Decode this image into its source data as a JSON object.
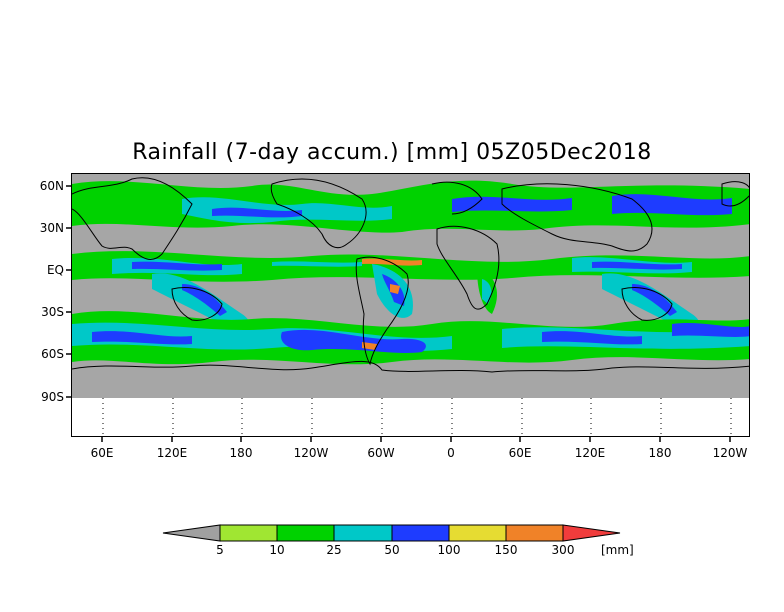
{
  "title": "Rainfall (7-day accum.) [mm] 05Z05Dec2018",
  "y_ticks": [
    "60N",
    "30N",
    "EQ",
    "30S",
    "60S",
    "90S"
  ],
  "x_ticks": [
    "60E",
    "120E",
    "180",
    "120W",
    "60W",
    "0",
    "60E",
    "120E",
    "180",
    "120W"
  ],
  "colorbar": {
    "labels": [
      "5",
      "10",
      "25",
      "50",
      "100",
      "150",
      "300"
    ],
    "unit": "[mm]",
    "colors": [
      "#a0a0a0",
      "#a0e632",
      "#00d200",
      "#00c8c8",
      "#1e3cff",
      "#e6dc32",
      "#f08228",
      "#f03c3c"
    ]
  },
  "colors": {
    "land_mask": "#a6a6a6",
    "coast": "#000000"
  }
}
